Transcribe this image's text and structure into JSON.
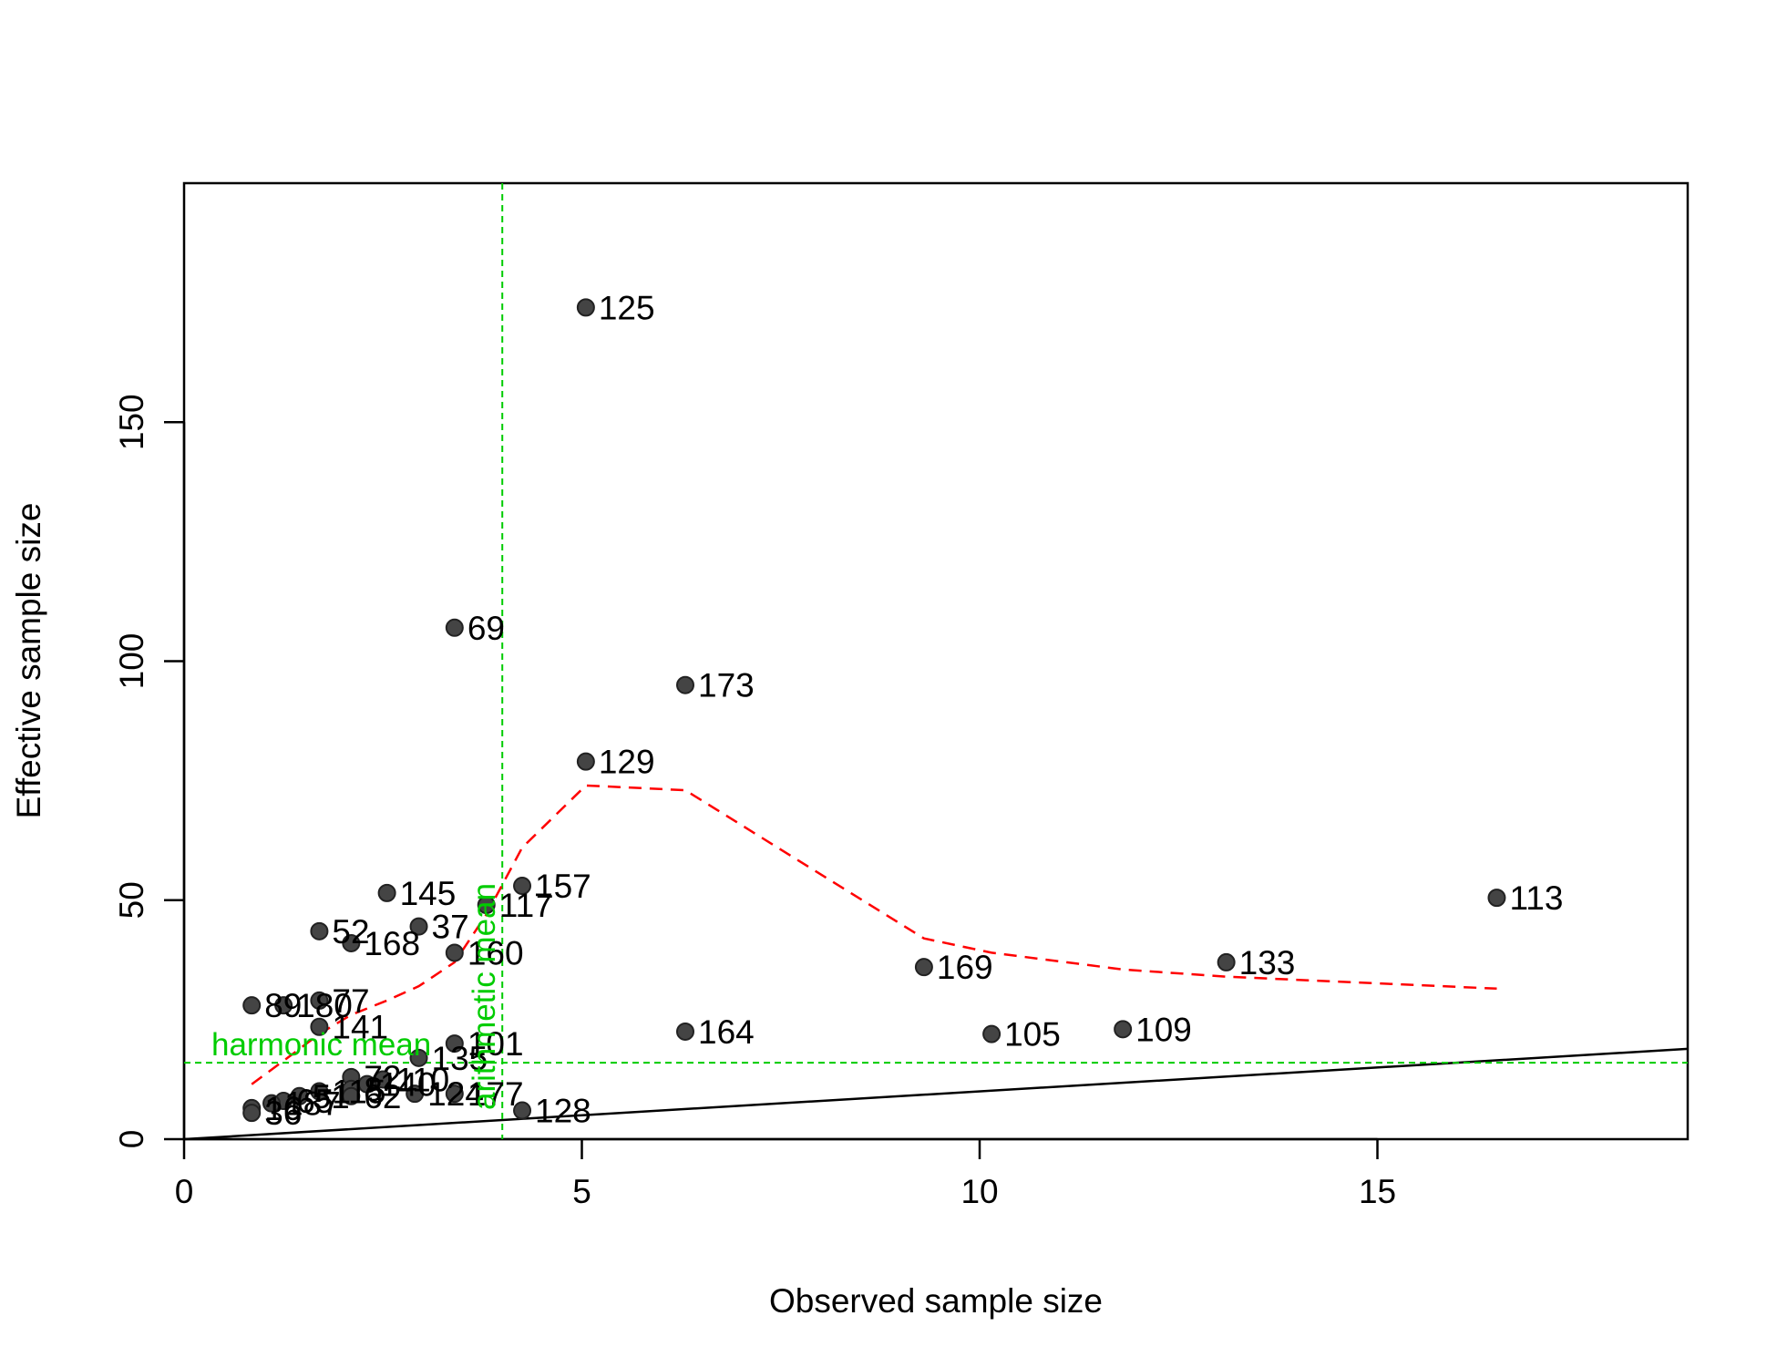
{
  "chart_data": {
    "type": "scatter",
    "xlabel": "Observed sample size",
    "ylabel": "Effective sample size",
    "xlim": [
      0,
      18.9
    ],
    "ylim": [
      0,
      200
    ],
    "x_ticks": [
      0,
      5,
      10,
      15
    ],
    "y_ticks": [
      0,
      50,
      100,
      150
    ],
    "x_tick_labels": [
      "0",
      "5",
      "10",
      "15"
    ],
    "y_tick_labels": [
      "0",
      "50",
      "100",
      "150"
    ],
    "grid": false,
    "point_color": "#444444",
    "points": [
      {
        "label": "125",
        "x": 5.05,
        "y": 174
      },
      {
        "label": "69",
        "x": 3.4,
        "y": 107
      },
      {
        "label": "173",
        "x": 6.3,
        "y": 95
      },
      {
        "label": "129",
        "x": 5.05,
        "y": 79
      },
      {
        "label": "157",
        "x": 4.25,
        "y": 53
      },
      {
        "label": "145",
        "x": 2.55,
        "y": 51.5
      },
      {
        "label": "117",
        "x": 3.8,
        "y": 49
      },
      {
        "label": "113",
        "x": 16.5,
        "y": 50.5
      },
      {
        "label": "37",
        "x": 2.95,
        "y": 44.5
      },
      {
        "label": "52",
        "x": 1.7,
        "y": 43.5
      },
      {
        "label": "168",
        "x": 2.1,
        "y": 41
      },
      {
        "label": "160",
        "x": 3.4,
        "y": 39
      },
      {
        "label": "133",
        "x": 13.1,
        "y": 37
      },
      {
        "label": "169",
        "x": 9.3,
        "y": 36
      },
      {
        "label": "77",
        "x": 1.7,
        "y": 29
      },
      {
        "label": "180",
        "x": 1.25,
        "y": 28
      },
      {
        "label": "89",
        "x": 0.85,
        "y": 28
      },
      {
        "label": "141",
        "x": 1.7,
        "y": 23.5
      },
      {
        "label": "109",
        "x": 11.8,
        "y": 23
      },
      {
        "label": "164",
        "x": 6.3,
        "y": 22.5
      },
      {
        "label": "105",
        "x": 10.15,
        "y": 22
      },
      {
        "label": "101",
        "x": 3.4,
        "y": 20
      },
      {
        "label": "135",
        "x": 2.95,
        "y": 17
      },
      {
        "label": "72",
        "x": 2.1,
        "y": 13
      },
      {
        "label": "110",
        "x": 2.5,
        "y": 12.5
      },
      {
        "label": "140",
        "x": 2.3,
        "y": 11.5
      },
      {
        "label": "8",
        "x": 2.1,
        "y": 10.5
      },
      {
        "label": "124",
        "x": 2.9,
        "y": 9.5
      },
      {
        "label": "62",
        "x": 2.1,
        "y": 9
      },
      {
        "label": "115",
        "x": 1.7,
        "y": 10
      },
      {
        "label": "177",
        "x": 3.4,
        "y": 9.5
      },
      {
        "label": "51",
        "x": 1.45,
        "y": 9
      },
      {
        "label": "65",
        "x": 1.25,
        "y": 8
      },
      {
        "label": "187",
        "x": 1.1,
        "y": 7.5
      },
      {
        "label": "16",
        "x": 0.85,
        "y": 6.5
      },
      {
        "label": "36",
        "x": 0.85,
        "y": 5.5
      },
      {
        "label": "128",
        "x": 4.25,
        "y": 6
      }
    ],
    "smooth_line": {
      "color": "#ff0000",
      "x": [
        0.85,
        1.3,
        1.7,
        2.1,
        2.55,
        2.95,
        3.4,
        3.8,
        4.25,
        5.05,
        6.3,
        9.3,
        10.15,
        11.8,
        13.1,
        16.5
      ],
      "y": [
        11.5,
        17,
        22,
        26,
        29,
        32,
        37,
        47,
        61,
        74,
        73,
        42,
        39,
        35.5,
        34,
        31.5
      ]
    },
    "identity_line": {
      "color": "#000000",
      "slope": 1
    },
    "reference_lines": {
      "color": "#00cc00",
      "harmonic_mean": {
        "label": "harmonic mean",
        "y": 16
      },
      "arithmetic_mean": {
        "label": "arithmetic mean",
        "x": 4
      }
    }
  }
}
